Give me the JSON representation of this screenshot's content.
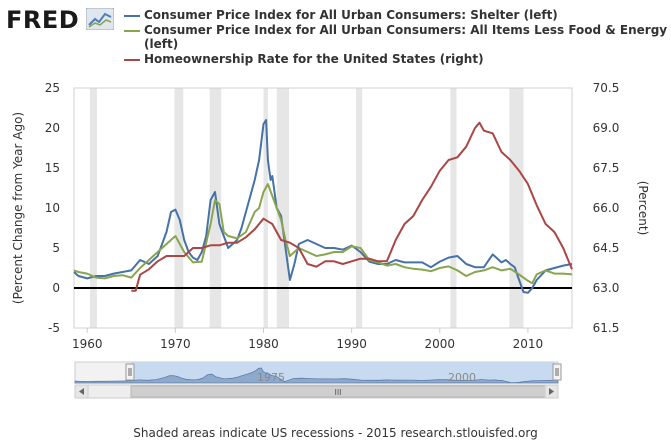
{
  "logo": {
    "text": "FRED",
    "icon": "chart-trend-icon"
  },
  "footer": {
    "note": "Shaded areas indicate US recessions - 2015 research.stlouisfed.org"
  },
  "navigator": {
    "labels": [
      "1975",
      "2000"
    ],
    "scroll_grip": "III"
  },
  "colors": {
    "shelter": "#4572a7",
    "core": "#89a54e",
    "homeownership": "#aa4643",
    "recession": "#e6e6e6",
    "zero_line": "#000000"
  },
  "chart_data": {
    "type": "line",
    "xlim": [
      1958.5,
      2015
    ],
    "x_ticks": [
      "1960",
      "1970",
      "1980",
      "1990",
      "2000",
      "2010"
    ],
    "left_axis": {
      "label": "(Percent Change from Year Ago)",
      "ylim": [
        -5,
        25
      ],
      "ticks": [
        "-5",
        "0",
        "5",
        "10",
        "15",
        "20",
        "25"
      ]
    },
    "right_axis": {
      "label": "(Percent)",
      "ylim": [
        61.5,
        70.5
      ],
      "ticks": [
        "61.5",
        "63.0",
        "64.5",
        "66.0",
        "67.5",
        "69.0",
        "70.5"
      ]
    },
    "recessions": [
      [
        1960.3,
        1961.1
      ],
      [
        1969.9,
        1970.9
      ],
      [
        1973.9,
        1975.2
      ],
      [
        1980.0,
        1980.5
      ],
      [
        1981.5,
        1982.9
      ],
      [
        1990.5,
        1991.2
      ],
      [
        2001.2,
        2001.9
      ],
      [
        2007.9,
        2009.5
      ]
    ],
    "series": [
      {
        "name": "Consumer Price Index for All Urban Consumers: Shelter (left)",
        "axis": "left",
        "color_key": "shelter",
        "x": [
          1958.5,
          1959,
          1960,
          1961,
          1962,
          1963,
          1964,
          1965,
          1966,
          1967,
          1968,
          1969,
          1969.5,
          1970,
          1970.5,
          1971,
          1971.5,
          1972,
          1972.5,
          1973,
          1973.5,
          1974,
          1974.5,
          1975,
          1975.5,
          1976,
          1977,
          1977.5,
          1978,
          1978.5,
          1979,
          1979.5,
          1980,
          1980.3,
          1980.5,
          1980.8,
          1981,
          1981.5,
          1982,
          1982.5,
          1983,
          1983.5,
          1984,
          1985,
          1986,
          1987,
          1988,
          1989,
          1990,
          1991,
          1992,
          1993,
          1994,
          1995,
          1996,
          1997,
          1998,
          1999,
          2000,
          2001,
          2002,
          2003,
          2004,
          2005,
          2006,
          2007,
          2007.5,
          2008,
          2008.5,
          2009,
          2009.5,
          2010,
          2010.5,
          2011,
          2012,
          2013,
          2014,
          2015
        ],
        "values": [
          2.0,
          1.5,
          1.2,
          1.5,
          1.5,
          1.8,
          2.0,
          2.2,
          3.5,
          3.0,
          4.0,
          7.0,
          9.5,
          9.8,
          8.5,
          6.0,
          4.5,
          3.8,
          3.5,
          4.5,
          6.5,
          11.0,
          12.0,
          8.0,
          6.5,
          5.0,
          6.0,
          7.5,
          9.5,
          11.5,
          13.5,
          16.0,
          20.5,
          21.0,
          16.0,
          13.5,
          14.0,
          10.0,
          9.0,
          5.0,
          1.0,
          3.0,
          5.5,
          6.0,
          5.5,
          5.0,
          5.0,
          4.8,
          5.3,
          4.5,
          3.3,
          3.0,
          3.0,
          3.5,
          3.2,
          3.2,
          3.2,
          2.6,
          3.3,
          3.8,
          4.0,
          3.0,
          2.6,
          2.6,
          4.2,
          3.2,
          3.5,
          3.0,
          2.6,
          1.0,
          -0.5,
          -0.6,
          0.0,
          1.0,
          2.2,
          2.5,
          2.8,
          3.0
        ]
      },
      {
        "name": "Consumer Price Index for All Urban Consumers: All Items Less Food & Energy (left)",
        "axis": "left",
        "color_key": "core",
        "x": [
          1958.5,
          1959,
          1960,
          1961,
          1962,
          1963,
          1964,
          1965,
          1966,
          1967,
          1968,
          1969,
          1970,
          1971,
          1972,
          1973,
          1974,
          1974.5,
          1975,
          1975.5,
          1976,
          1977,
          1978,
          1979,
          1979.5,
          1980,
          1980.5,
          1981,
          1981.5,
          1982,
          1982.5,
          1983,
          1984,
          1985,
          1986,
          1987,
          1988,
          1989,
          1990,
          1991,
          1992,
          1993,
          1994,
          1995,
          1996,
          1997,
          1998,
          1999,
          2000,
          2001,
          2002,
          2003,
          2004,
          2005,
          2006,
          2007,
          2008,
          2009,
          2010,
          2010.5,
          2011,
          2012,
          2013,
          2014,
          2015
        ],
        "values": [
          2.2,
          2.0,
          1.8,
          1.3,
          1.2,
          1.5,
          1.6,
          1.3,
          2.5,
          3.5,
          4.5,
          5.5,
          6.5,
          4.5,
          3.2,
          3.3,
          8.0,
          11.0,
          10.5,
          7.0,
          6.5,
          6.2,
          7.0,
          9.5,
          10.0,
          12.0,
          13.0,
          11.5,
          10.0,
          8.5,
          6.0,
          4.0,
          5.0,
          4.5,
          4.0,
          4.2,
          4.5,
          4.5,
          5.2,
          5.0,
          3.5,
          3.2,
          2.8,
          3.0,
          2.6,
          2.4,
          2.3,
          2.1,
          2.5,
          2.7,
          2.2,
          1.5,
          2.0,
          2.2,
          2.6,
          2.2,
          2.4,
          1.7,
          0.9,
          0.6,
          1.7,
          2.2,
          1.8,
          1.8,
          1.7
        ]
      },
      {
        "name": "Homeownership Rate for the United States (right)",
        "axis": "right",
        "color_key": "homeownership",
        "x": [
          1965,
          1965.5,
          1966,
          1967,
          1968,
          1969,
          1970,
          1971,
          1972,
          1973,
          1974,
          1975,
          1976,
          1977,
          1978,
          1979,
          1980,
          1981,
          1982,
          1983,
          1984,
          1985,
          1986,
          1987,
          1988,
          1989,
          1990,
          1991,
          1992,
          1993,
          1994,
          1995,
          1996,
          1997,
          1998,
          1999,
          2000,
          2001,
          2002,
          2003,
          2004,
          2004.5,
          2005,
          2006,
          2007,
          2008,
          2009,
          2010,
          2011,
          2012,
          2013,
          2014,
          2015
        ],
        "values": [
          62.9,
          62.9,
          63.5,
          63.7,
          64.0,
          64.2,
          64.2,
          64.2,
          64.5,
          64.5,
          64.6,
          64.6,
          64.7,
          64.7,
          64.9,
          65.2,
          65.6,
          65.4,
          64.8,
          64.7,
          64.5,
          63.9,
          63.8,
          64.0,
          64.0,
          63.9,
          64.0,
          64.1,
          64.1,
          64.0,
          64.0,
          64.8,
          65.4,
          65.7,
          66.3,
          66.8,
          67.4,
          67.8,
          67.9,
          68.3,
          69.0,
          69.2,
          68.9,
          68.8,
          68.1,
          67.8,
          67.4,
          66.9,
          66.1,
          65.4,
          65.1,
          64.5,
          63.7
        ]
      }
    ]
  }
}
